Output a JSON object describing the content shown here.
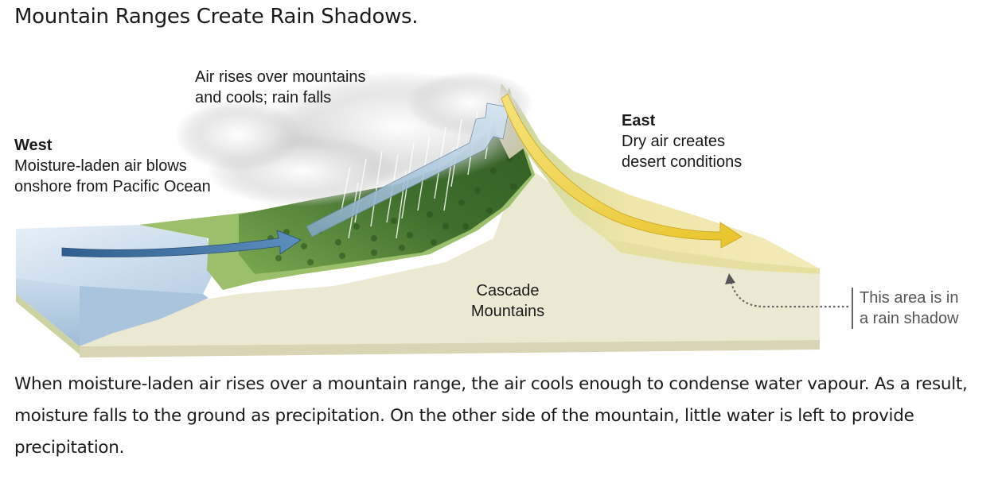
{
  "title": "Mountain Ranges Create Rain Shadows.",
  "labels": {
    "west": {
      "heading": "West",
      "line1": "Moisture-laden air blows",
      "line2": "onshore from Pacific Ocean"
    },
    "rain": {
      "line1": "Air rises over mountains",
      "line2": "and cools; rain falls"
    },
    "east": {
      "heading": "East",
      "line1": "Dry air creates",
      "line2": "desert conditions"
    },
    "cascade": {
      "line1": "Cascade",
      "line2": "Mountains"
    },
    "shadow": {
      "line1": "This area is in",
      "line2": "a rain shadow"
    }
  },
  "caption": "When moisture-laden air rises over a mountain range, the air cools enough to condense water vapour. As a result, moisture falls to the ground as precipitation. On the other side of the mountain, little water is left to provide precipitation.",
  "colors": {
    "ocean": "#cfe0ef",
    "land": "#ece9d2",
    "forest": "#5d8a3c",
    "desert": "#efe6a8",
    "moist_air_arrow": "#4f7ea8",
    "dry_air_arrow": "#f0d23a"
  }
}
